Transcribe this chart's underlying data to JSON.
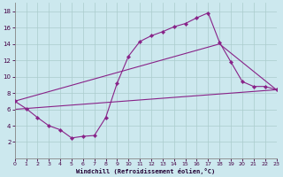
{
  "background_color": "#cce8ee",
  "grid_color": "#aacccc",
  "line_color": "#882288",
  "xlim": [
    0,
    23
  ],
  "ylim": [
    0,
    19
  ],
  "xticks": [
    0,
    1,
    2,
    3,
    4,
    5,
    6,
    7,
    8,
    9,
    10,
    11,
    12,
    13,
    14,
    15,
    16,
    17,
    18,
    19,
    20,
    21,
    22,
    23
  ],
  "yticks": [
    2,
    4,
    6,
    8,
    10,
    12,
    14,
    16,
    18
  ],
  "xlabel": "Windchill (Refroidissement éolien,°C)",
  "series1_x": [
    0,
    1,
    2,
    3,
    4,
    5,
    6,
    7,
    8,
    9,
    10,
    11,
    12,
    13,
    14,
    15,
    16,
    17,
    18,
    19,
    20,
    21,
    22,
    23
  ],
  "series1_y": [
    7.0,
    6.1,
    5.0,
    4.0,
    3.5,
    2.5,
    2.7,
    2.8,
    5.0,
    9.2,
    12.5,
    14.3,
    15.0,
    15.5,
    16.1,
    16.5,
    17.2,
    17.8,
    14.2,
    11.8,
    9.4,
    8.8,
    8.8,
    8.4
  ],
  "series2_x": [
    0,
    18,
    23
  ],
  "series2_y": [
    7.0,
    14.0,
    8.4
  ],
  "series3_x": [
    0,
    23
  ],
  "series3_y": [
    6.0,
    8.4
  ]
}
